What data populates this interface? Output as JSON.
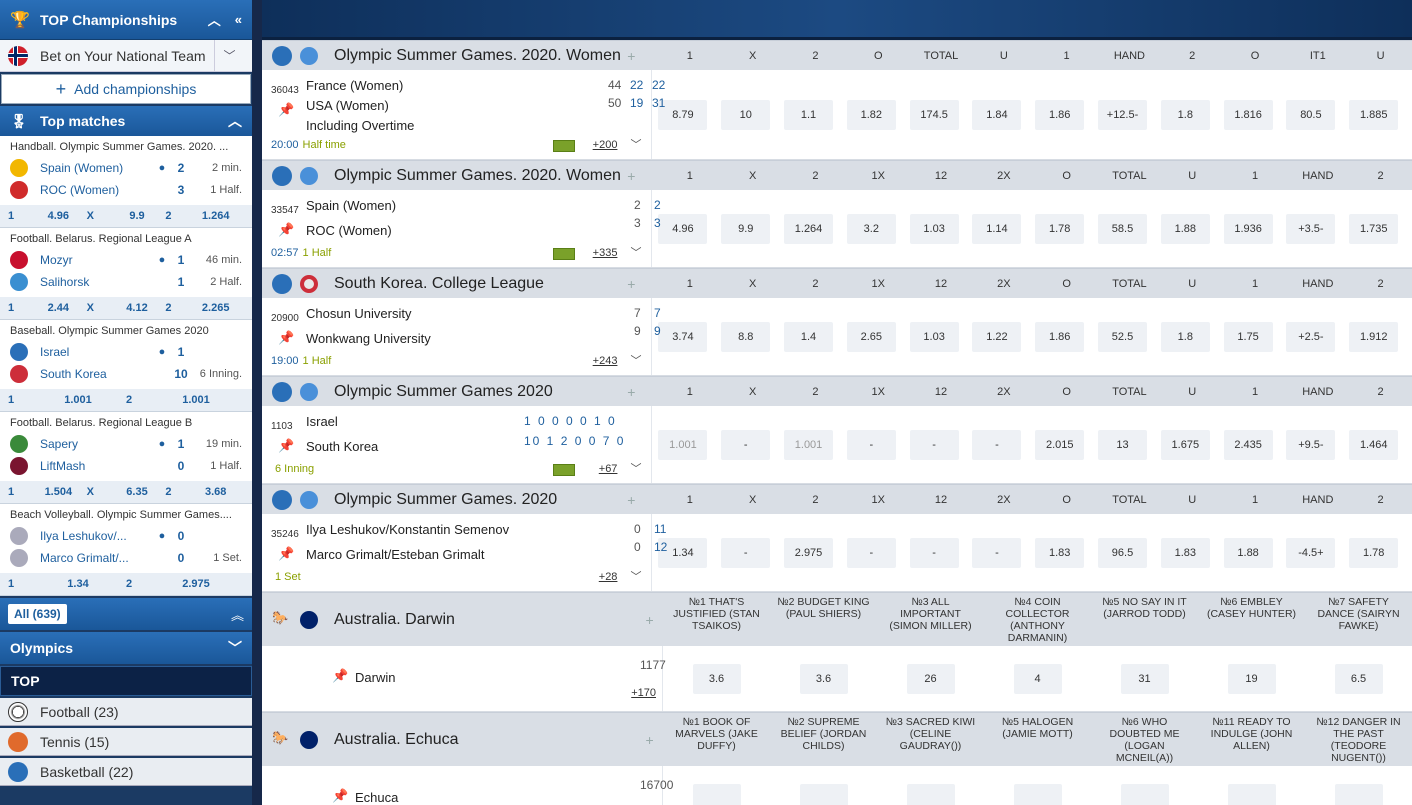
{
  "sidebar": {
    "top_championships": "TOP Championships",
    "national_team": "Bet on Your National Team",
    "add_championships": "Add championships",
    "top_matches": "Top matches",
    "cards": [
      {
        "cat": "Handball. Olympic Summer Games. 2020. ...",
        "t1": "Spain (Women)",
        "s1": "2",
        "st1": "2 min.",
        "t2": "ROC (Women)",
        "s2": "3",
        "st2": "1 Half.",
        "odds": [
          "1",
          "4.96",
          "X",
          "9.9",
          "2",
          "1.264"
        ]
      },
      {
        "cat": "Football. Belarus. Regional League A",
        "t1": "Mozyr",
        "s1": "1",
        "st1": "46 min.",
        "t2": "Salihorsk",
        "s2": "1",
        "st2": "2 Half.",
        "odds": [
          "1",
          "2.44",
          "X",
          "4.12",
          "2",
          "2.265"
        ]
      },
      {
        "cat": "Baseball. Olympic Summer Games 2020",
        "t1": "Israel",
        "s1": "1",
        "st1": "",
        "t2": "South Korea",
        "s2": "10",
        "st2": "6 Inning.",
        "odds": [
          "1",
          "1.001",
          "2",
          "1.001"
        ]
      },
      {
        "cat": "Football. Belarus. Regional League B",
        "t1": "Sapery",
        "s1": "1",
        "st1": "19 min.",
        "t2": "LiftMash",
        "s2": "0",
        "st2": "1 Half.",
        "odds": [
          "1",
          "1.504",
          "X",
          "6.35",
          "2",
          "3.68"
        ]
      },
      {
        "cat": "Beach Volleyball. Olympic Summer Games....",
        "t1": "Ilya Leshukov/...",
        "s1": "0",
        "st1": "",
        "t2": "Marco Grimalt/...",
        "s2": "0",
        "st2": "1 Set.",
        "odds": [
          "1",
          "1.34",
          "2",
          "2.975"
        ]
      }
    ],
    "all_label": "All (639)",
    "olympics": "Olympics",
    "top": "TOP",
    "sports": [
      "Football (23)",
      "Tennis (15)",
      "Basketball (22)"
    ]
  },
  "leagues": [
    {
      "name": "Olympic Summer Games. 2020. Women",
      "cols": [
        "1",
        "X",
        "2",
        "O",
        "TOTAL",
        "U",
        "1",
        "HAND",
        "2",
        "O",
        "IT1",
        "U"
      ],
      "id": "36043",
      "teams": [
        "France (Women)",
        "USA (Women)",
        "Including Overtime"
      ],
      "score": [
        "44",
        "22",
        "22",
        "50",
        "19",
        "31"
      ],
      "time": "20:00",
      "status": "Half time",
      "more": "+200",
      "odds": [
        "8.79",
        "10",
        "1.1",
        "1.82",
        "174.5",
        "1.84",
        "1.86",
        "+12.5-",
        "1.8",
        "1.816",
        "80.5",
        "1.885"
      ]
    },
    {
      "name": "Olympic Summer Games. 2020. Women",
      "cols": [
        "1",
        "X",
        "2",
        "1X",
        "12",
        "2X",
        "O",
        "TOTAL",
        "U",
        "1",
        "HAND",
        "2"
      ],
      "id": "33547",
      "teams": [
        "Spain (Women)",
        "ROC (Women)"
      ],
      "score": [
        "2",
        "2",
        "3",
        "3"
      ],
      "time": "02:57",
      "status": "1 Half",
      "more": "+335",
      "odds": [
        "4.96",
        "9.9",
        "1.264",
        "3.2",
        "1.03",
        "1.14",
        "1.78",
        "58.5",
        "1.88",
        "1.936",
        "+3.5-",
        "1.735"
      ]
    },
    {
      "name": "South Korea. College League",
      "cols": [
        "1",
        "X",
        "2",
        "1X",
        "12",
        "2X",
        "O",
        "TOTAL",
        "U",
        "1",
        "HAND",
        "2"
      ],
      "id": "20900",
      "teams": [
        "Chosun University",
        "Wonkwang University"
      ],
      "score": [
        "7",
        "7",
        "9",
        "9"
      ],
      "time": "19:00",
      "status": "1 Half",
      "more": "+243",
      "odds": [
        "3.74",
        "8.8",
        "1.4",
        "2.65",
        "1.03",
        "1.22",
        "1.86",
        "52.5",
        "1.8",
        "1.75",
        "+2.5-",
        "1.912"
      ]
    },
    {
      "name": "Olympic Summer Games 2020",
      "cols": [
        "1",
        "X",
        "2",
        "1X",
        "12",
        "2X",
        "O",
        "TOTAL",
        "U",
        "1",
        "HAND",
        "2"
      ],
      "id": "1103",
      "teams": [
        "Israel",
        "South Korea"
      ],
      "score": [
        "1 0 0 0 0 1 0",
        "10 1 2 0 0 7 0"
      ],
      "time": "",
      "status": "6 Inning",
      "more": "+67",
      "odds": [
        "1.001",
        "-",
        "1.001",
        "-",
        "-",
        "-",
        "2.015",
        "13",
        "1.675",
        "2.435",
        "+9.5-",
        "1.464"
      ]
    },
    {
      "name": "Olympic Summer Games. 2020",
      "cols": [
        "1",
        "X",
        "2",
        "1X",
        "12",
        "2X",
        "O",
        "TOTAL",
        "U",
        "1",
        "HAND",
        "2"
      ],
      "id": "35246",
      "teams": [
        "Ilya Leshukov/Konstantin Semenov",
        "Marco Grimalt/Esteban Grimalt"
      ],
      "score": [
        "0",
        "11",
        "0",
        "12"
      ],
      "time": "",
      "status": "1 Set",
      "more": "+28",
      "odds": [
        "1.34",
        "-",
        "2.975",
        "-",
        "-",
        "-",
        "1.83",
        "96.5",
        "1.83",
        "1.88",
        "-4.5+",
        "1.78"
      ]
    }
  ],
  "races": [
    {
      "name": "Australia. Darwin",
      "cols": [
        "№1 THAT'S JUSTIFIED (STAN TSAIKOS)",
        "№2 BUDGET KING (PAUL SHIERS)",
        "№3 ALL IMPORTANT (SIMON MILLER)",
        "№4 COIN COLLECTOR (ANTHONY DARMANIN)",
        "№5 NO SAY IN IT (JARROD TODD)",
        "№6 EMBLEY (CASEY HUNTER)",
        "№7 SAFETY DANCE (SAIRYN FAWKE)"
      ],
      "id": "1177",
      "title": "Darwin",
      "more": "+170",
      "odds": [
        "3.6",
        "3.6",
        "26",
        "4",
        "31",
        "19",
        "6.5"
      ]
    },
    {
      "name": "Australia. Echuca",
      "cols": [
        "№1 BOOK OF MARVELS (JAKE DUFFY)",
        "№2 SUPREME BELIEF (JORDAN CHILDS)",
        "№3 SACRED KIWI (CELINE GAUDRAY())",
        "№5 HALOGEN (JAMIE MOTT)",
        "№6 WHO DOUBTED ME (LOGAN MCNEIL(A))",
        "№11 READY TO INDULGE (JOHN ALLEN)",
        "№12 DANGER IN THE PAST (TEODORE NUGENT())"
      ],
      "id": "16700",
      "title": "Echuca",
      "more": "",
      "odds": [
        "",
        "",
        "",
        "",
        "",
        "",
        ""
      ]
    }
  ]
}
